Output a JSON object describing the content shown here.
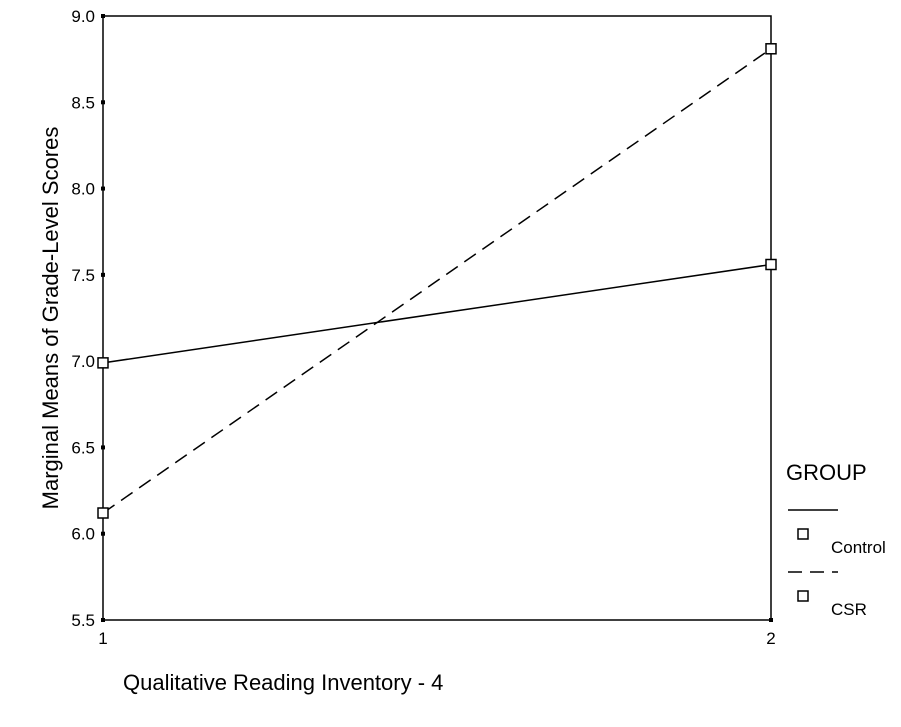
{
  "chart_data": {
    "type": "line",
    "xlabel": "Qualitative Reading Inventory - 4",
    "ylabel": "Marginal Means of Grade-Level Scores",
    "categories": [
      "1",
      "2"
    ],
    "ylim": [
      5.5,
      9.0
    ],
    "yticks": [
      "5.5",
      "6.0",
      "6.5",
      "7.0",
      "7.5",
      "8.0",
      "8.5",
      "9.0"
    ],
    "grid": false,
    "legend": {
      "title": "GROUP",
      "placement": "right",
      "entries": [
        "Control",
        "CSR"
      ]
    },
    "series": [
      {
        "name": "Control",
        "values": [
          6.99,
          7.56
        ],
        "line_style": "solid",
        "marker": "open-square",
        "color": "#000000"
      },
      {
        "name": "CSR",
        "values": [
          6.12,
          8.81
        ],
        "line_style": "dashed",
        "marker": "open-square",
        "color": "#000000"
      }
    ]
  }
}
